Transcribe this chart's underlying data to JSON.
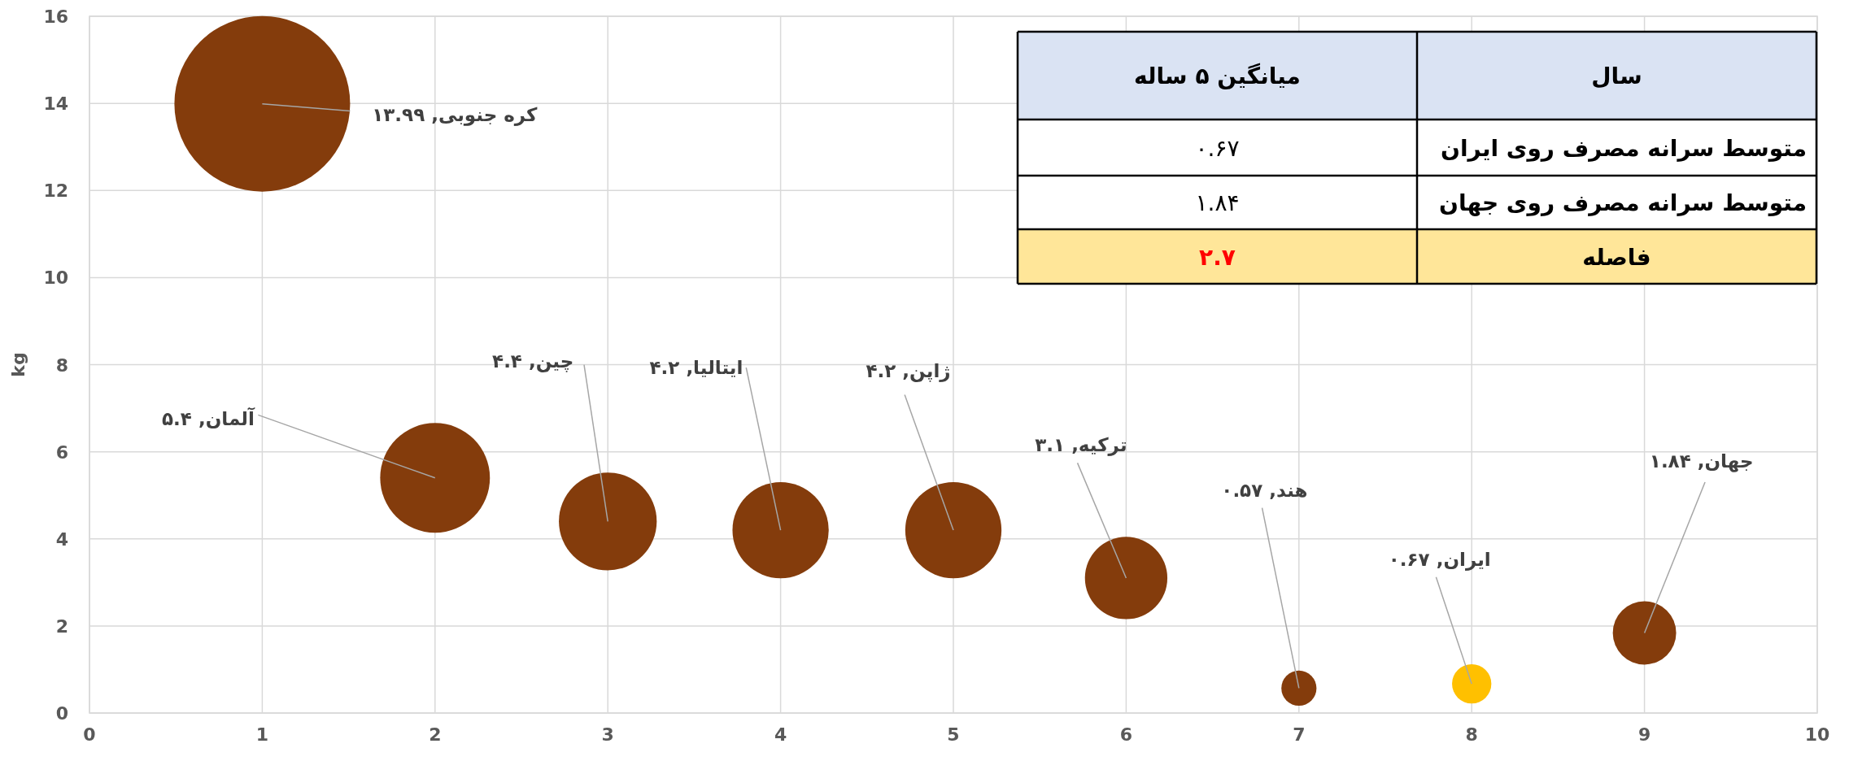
{
  "chart_data": [
    {
      "type": "bubble",
      "ylabel": "kg",
      "x": [
        1,
        2,
        3,
        4,
        5,
        6,
        7,
        8,
        9
      ],
      "series": [
        {
          "colors": [
            "#843c0c",
            "#843c0c",
            "#843c0c",
            "#843c0c",
            "#843c0c",
            "#843c0c",
            "#843c0c",
            "#ffc000",
            "#843c0c"
          ],
          "values": [
            13.99,
            5.4,
            4.4,
            4.2,
            4.2,
            3.1,
            0.57,
            0.67,
            1.84
          ],
          "sizes": [
            1,
            0.39,
            0.31,
            0.3,
            0.3,
            0.22,
            0.04,
            0.05,
            0.13
          ],
          "value_labels": [
            "کره جنوبی, ۱۳.۹۹",
            "آلمان, ۵.۴",
            "چین, ۴.۴",
            "ایتالیا, ۴.۲",
            "ژاپن, ۴.۲",
            "ترکیه, ۳.۱",
            "هند, ۰.۵۷",
            "ایران, ۰.۶۷",
            "جهان, ۱.۸۴"
          ]
        }
      ],
      "xlim": [
        0,
        10
      ],
      "xticks": [
        0,
        1,
        2,
        3,
        4,
        5,
        6,
        7,
        8,
        9,
        10
      ],
      "ylim": [
        0,
        16
      ],
      "yticks": [
        0,
        2,
        4,
        6,
        8,
        10,
        12,
        14,
        16
      ],
      "grid": true
    },
    {
      "type": "other",
      "categories": [
        "سال",
        "میانگین ۵ ساله"
      ],
      "y_categories": [
        "متوسط سرانه مصرف روی ایران",
        "متوسط سرانه مصرف روی جهان",
        "فاصله"
      ],
      "cell_labels": [
        [
          "۰.۶۷"
        ],
        [
          "۱.۸۴"
        ],
        [
          "۲.۷"
        ]
      ]
    }
  ]
}
